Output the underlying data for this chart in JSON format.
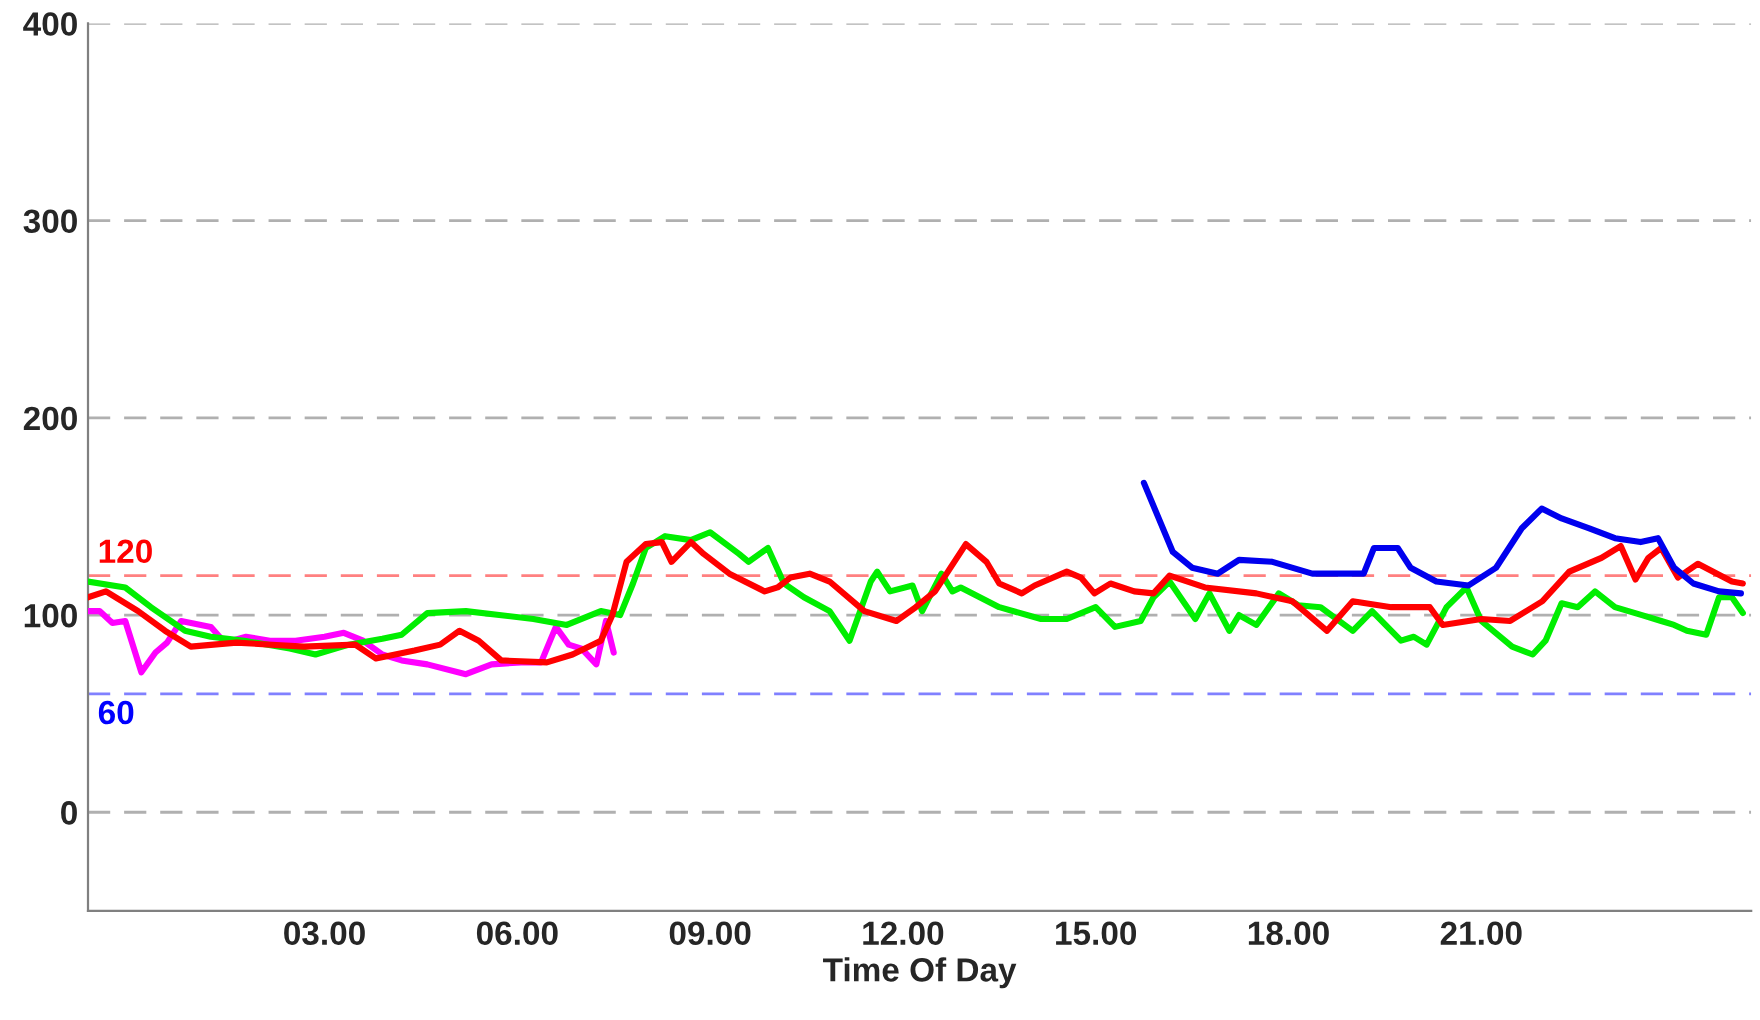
{
  "chart_data": {
    "type": "line",
    "xlabel": "Time Of Day",
    "xlim": [
      -0.68,
      25.2
    ],
    "ylim": [
      -50,
      400
    ],
    "xticks": [
      {
        "value": 3,
        "label": "03.00"
      },
      {
        "value": 6,
        "label": "06.00"
      },
      {
        "value": 9,
        "label": "09.00"
      },
      {
        "value": 12,
        "label": "12.00"
      },
      {
        "value": 15,
        "label": "15.00"
      },
      {
        "value": 18,
        "label": "18.00"
      },
      {
        "value": 21,
        "label": "21.00"
      }
    ],
    "yticks": [
      0,
      100,
      200,
      300,
      400
    ],
    "grid": "y",
    "marker": "none",
    "line_style": "solid",
    "ref_lines": [
      {
        "axis": "y",
        "value": 120,
        "label": "120",
        "color": "#ff8080",
        "line_style": "dashed"
      },
      {
        "axis": "y",
        "value": 60,
        "label": "60",
        "color": "#8080ff",
        "line_style": "dashed"
      }
    ],
    "series": [
      {
        "color": "#ff00ff",
        "x": [
          -0.68,
          -0.5,
          -0.3,
          -0.1,
          0.15,
          0.37,
          0.55,
          0.77,
          1.23,
          1.45,
          1.78,
          2.15,
          2.55,
          3.0,
          3.3,
          3.6,
          3.9,
          4.2,
          4.6,
          5.2,
          5.6,
          6.06,
          6.37,
          6.6,
          6.8,
          7.0,
          7.23,
          7.38,
          7.5
        ],
        "values": [
          102,
          102,
          96,
          97,
          71,
          81,
          86,
          97,
          94,
          86,
          89,
          87,
          87,
          89,
          91,
          87,
          80,
          77,
          75,
          70,
          75,
          76,
          76,
          94,
          85,
          83,
          75,
          97,
          81
        ]
      },
      {
        "color": "#00ee00",
        "x": [
          -0.68,
          -0.1,
          0.3,
          0.83,
          1.23,
          1.75,
          2.46,
          2.86,
          3.17,
          3.38,
          3.9,
          4.2,
          4.6,
          5.2,
          6.25,
          6.77,
          7.3,
          7.6,
          7.8,
          8.0,
          8.3,
          8.7,
          9.0,
          9.45,
          9.6,
          9.9,
          10.15,
          10.46,
          10.86,
          11.17,
          11.5,
          11.6,
          11.8,
          12.15,
          12.3,
          12.6,
          12.77,
          12.9,
          13.5,
          14.15,
          14.55,
          15.0,
          15.3,
          15.7,
          15.9,
          16.15,
          16.55,
          16.77,
          17.08,
          17.23,
          17.5,
          17.85,
          18.15,
          18.5,
          19.0,
          19.3,
          19.75,
          19.95,
          20.15,
          20.46,
          20.77,
          21.0,
          21.48,
          21.8,
          22.0,
          22.25,
          22.5,
          22.77,
          23.08,
          23.5,
          23.8,
          24.0,
          24.2,
          24.5,
          24.7,
          24.9,
          25.07
        ],
        "values": [
          117,
          114,
          104,
          92,
          89,
          87,
          83,
          80,
          83,
          85,
          88,
          90,
          101,
          102,
          98,
          95,
          102,
          100,
          116,
          134,
          140,
          138,
          142,
          131,
          127,
          134,
          116,
          109,
          102,
          87,
          117,
          122,
          112,
          115,
          102,
          121,
          112,
          114,
          104,
          98,
          98,
          104,
          94,
          97,
          109,
          117,
          98,
          111,
          92,
          100,
          95,
          111,
          105,
          104,
          92,
          102,
          87,
          89,
          85,
          104,
          114,
          97,
          84,
          80,
          87,
          106,
          104,
          112,
          104,
          100,
          97,
          95,
          92,
          90,
          109,
          109,
          101
        ]
      },
      {
        "color": "#ff0000",
        "x": [
          -0.68,
          -0.4,
          0.1,
          0.52,
          0.92,
          1.63,
          2.68,
          3.48,
          3.8,
          4.4,
          4.8,
          5.1,
          5.4,
          5.75,
          6.46,
          6.86,
          7.3,
          7.48,
          7.7,
          8.0,
          8.25,
          8.4,
          8.7,
          8.9,
          9.3,
          9.85,
          10.05,
          10.25,
          10.55,
          10.86,
          11.4,
          11.9,
          12.2,
          12.5,
          12.98,
          13.3,
          13.5,
          13.85,
          14.05,
          14.55,
          14.77,
          14.98,
          15.23,
          15.6,
          15.9,
          16.15,
          16.7,
          17.5,
          18.06,
          18.6,
          19.0,
          19.6,
          20.2,
          20.4,
          21.0,
          21.45,
          21.95,
          22.37,
          22.87,
          23.17,
          23.4,
          23.6,
          23.8,
          24.06,
          24.37,
          24.9,
          25.07
        ],
        "values": [
          109,
          112,
          102,
          92,
          84,
          86,
          84,
          85,
          78,
          82,
          85,
          92,
          87,
          77,
          76,
          80,
          87,
          100,
          127,
          136,
          137,
          127,
          137,
          131,
          121,
          112,
          114,
          119,
          121,
          117,
          102,
          97,
          104,
          112,
          136,
          127,
          116,
          111,
          115,
          122,
          119,
          111,
          116,
          112,
          111,
          120,
          114,
          111,
          107,
          92,
          107,
          104,
          104,
          95,
          98,
          97,
          107,
          122,
          129,
          135,
          118,
          129,
          134,
          119,
          126,
          117,
          116
        ]
      },
      {
        "color": "#0000ee",
        "x": [
          15.75,
          16.2,
          16.5,
          16.9,
          17.23,
          17.75,
          18.37,
          18.77,
          19.17,
          19.33,
          19.7,
          19.9,
          20.3,
          20.8,
          21.23,
          21.63,
          21.94,
          22.25,
          22.68,
          23.08,
          23.48,
          23.75,
          24.0,
          24.3,
          24.7,
          25.04
        ],
        "values": [
          167,
          132,
          124,
          121,
          128,
          127,
          121,
          121,
          121,
          134,
          134,
          124,
          117,
          115,
          124,
          144,
          154,
          149,
          144,
          139,
          137,
          139,
          124,
          116,
          112,
          111
        ]
      }
    ]
  }
}
